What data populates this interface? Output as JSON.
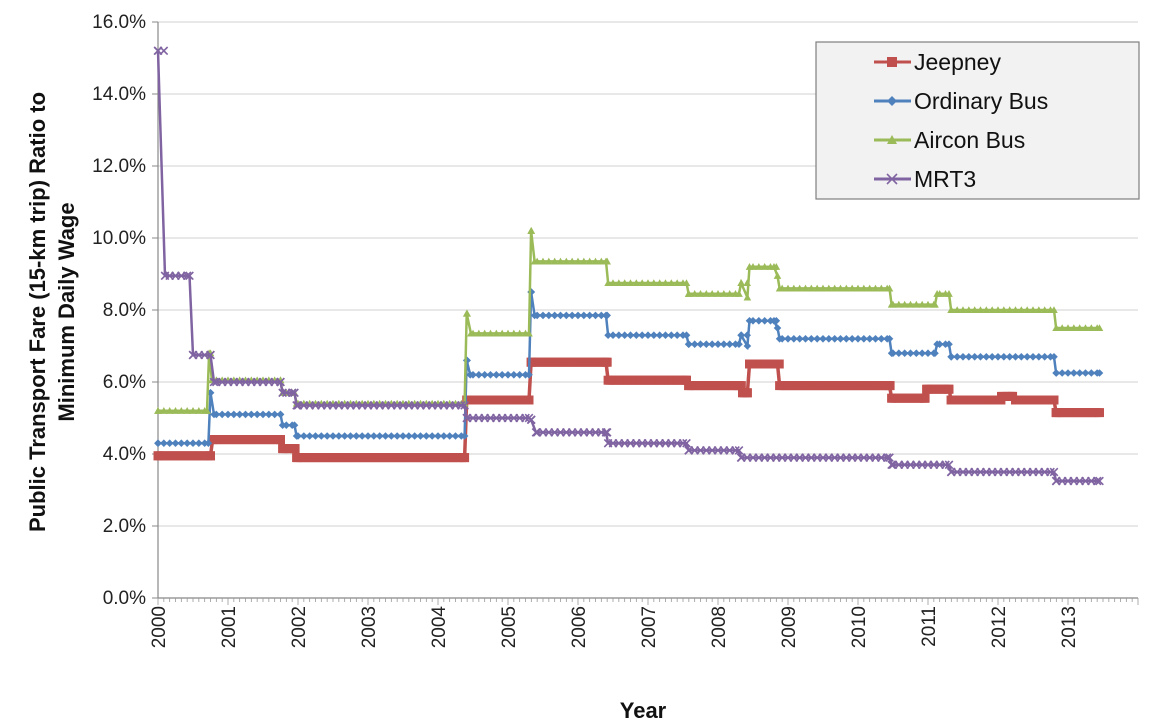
{
  "chart_data": {
    "type": "line",
    "title": "",
    "xlabel": "Year",
    "ylabel": "Public Transport Fare (15-km trip) Ratio to Minimum Daily Wage",
    "ylabel_lines": [
      "Public Transport Fare (15-km trip) Ratio to",
      "Minimum Daily Wage"
    ],
    "x_ticks": [
      "2000",
      "2001",
      "2002",
      "2003",
      "2004",
      "2005",
      "2006",
      "2007",
      "2008",
      "2009",
      "2010",
      "2011",
      "2012",
      "2013"
    ],
    "y_ticks": [
      "0.0%",
      "2.0%",
      "4.0%",
      "6.0%",
      "8.0%",
      "10.0%",
      "12.0%",
      "14.0%",
      "16.0%"
    ],
    "xlim": [
      2000,
      2014
    ],
    "ylim": [
      0,
      16
    ],
    "grid": "horizontal",
    "legend_position": "top-right",
    "series": [
      {
        "name": "Jeepney",
        "color": "#c0504d",
        "marker": "square",
        "points": [
          [
            2000.0,
            3.95
          ],
          [
            2000.75,
            3.95
          ],
          [
            2000.78,
            4.4
          ],
          [
            2001.75,
            4.4
          ],
          [
            2001.78,
            4.15
          ],
          [
            2001.95,
            4.15
          ],
          [
            2001.98,
            3.9
          ],
          [
            2004.38,
            3.9
          ],
          [
            2004.41,
            5.5
          ],
          [
            2005.3,
            5.5
          ],
          [
            2005.33,
            6.55
          ],
          [
            2006.4,
            6.55
          ],
          [
            2006.43,
            6.05
          ],
          [
            2007.55,
            6.05
          ],
          [
            2007.58,
            5.9
          ],
          [
            2008.3,
            5.9
          ],
          [
            2008.35,
            5.7
          ],
          [
            2008.42,
            5.7
          ],
          [
            2008.45,
            6.5
          ],
          [
            2008.85,
            6.5
          ],
          [
            2008.88,
            5.9
          ],
          [
            2010.45,
            5.9
          ],
          [
            2010.48,
            5.55
          ],
          [
            2010.95,
            5.55
          ],
          [
            2010.98,
            5.8
          ],
          [
            2011.3,
            5.8
          ],
          [
            2011.33,
            5.5
          ],
          [
            2012.0,
            5.5
          ],
          [
            2012.05,
            5.6
          ],
          [
            2012.2,
            5.6
          ],
          [
            2012.25,
            5.5
          ],
          [
            2012.8,
            5.5
          ],
          [
            2012.83,
            5.15
          ],
          [
            2013.45,
            5.15
          ]
        ]
      },
      {
        "name": "Ordinary Bus",
        "color": "#4f81bd",
        "marker": "diamond",
        "points": [
          [
            2000.0,
            4.3
          ],
          [
            2000.72,
            4.3
          ],
          [
            2000.75,
            5.7
          ],
          [
            2000.8,
            5.1
          ],
          [
            2001.75,
            5.1
          ],
          [
            2001.78,
            4.8
          ],
          [
            2001.95,
            4.8
          ],
          [
            2001.98,
            4.5
          ],
          [
            2004.38,
            4.5
          ],
          [
            2004.41,
            6.6
          ],
          [
            2004.46,
            6.2
          ],
          [
            2005.3,
            6.2
          ],
          [
            2005.33,
            8.5
          ],
          [
            2005.38,
            7.85
          ],
          [
            2006.4,
            7.85
          ],
          [
            2006.43,
            7.3
          ],
          [
            2007.55,
            7.3
          ],
          [
            2007.58,
            7.05
          ],
          [
            2008.3,
            7.05
          ],
          [
            2008.33,
            7.3
          ],
          [
            2008.42,
            7.0
          ],
          [
            2008.45,
            7.7
          ],
          [
            2008.8,
            7.7
          ],
          [
            2008.85,
            7.5
          ],
          [
            2008.88,
            7.2
          ],
          [
            2010.45,
            7.2
          ],
          [
            2010.48,
            6.8
          ],
          [
            2011.1,
            6.8
          ],
          [
            2011.13,
            7.05
          ],
          [
            2011.3,
            7.05
          ],
          [
            2011.33,
            6.7
          ],
          [
            2012.8,
            6.7
          ],
          [
            2012.83,
            6.25
          ],
          [
            2013.45,
            6.25
          ]
        ]
      },
      {
        "name": "Aircon Bus",
        "color": "#9bbb59",
        "marker": "triangle",
        "points": [
          [
            2000.0,
            5.2
          ],
          [
            2000.7,
            5.2
          ],
          [
            2000.73,
            6.8
          ],
          [
            2000.77,
            6.05
          ],
          [
            2001.75,
            6.05
          ],
          [
            2001.78,
            5.7
          ],
          [
            2001.95,
            5.7
          ],
          [
            2001.98,
            5.4
          ],
          [
            2004.38,
            5.4
          ],
          [
            2004.41,
            7.9
          ],
          [
            2004.47,
            7.35
          ],
          [
            2005.3,
            7.35
          ],
          [
            2005.33,
            10.2
          ],
          [
            2005.38,
            9.35
          ],
          [
            2006.4,
            9.35
          ],
          [
            2006.43,
            8.75
          ],
          [
            2007.55,
            8.75
          ],
          [
            2007.58,
            8.45
          ],
          [
            2008.3,
            8.45
          ],
          [
            2008.33,
            8.75
          ],
          [
            2008.42,
            8.35
          ],
          [
            2008.45,
            9.2
          ],
          [
            2008.8,
            9.2
          ],
          [
            2008.85,
            8.95
          ],
          [
            2008.88,
            8.6
          ],
          [
            2010.45,
            8.6
          ],
          [
            2010.48,
            8.15
          ],
          [
            2011.1,
            8.15
          ],
          [
            2011.13,
            8.45
          ],
          [
            2011.3,
            8.45
          ],
          [
            2011.33,
            8.0
          ],
          [
            2012.8,
            8.0
          ],
          [
            2012.83,
            7.5
          ],
          [
            2013.45,
            7.5
          ]
        ]
      },
      {
        "name": "MRT3",
        "color": "#8064a2",
        "marker": "x",
        "points": [
          [
            2000.0,
            15.2
          ],
          [
            2000.1,
            8.95
          ],
          [
            2000.45,
            8.95
          ],
          [
            2000.5,
            6.75
          ],
          [
            2000.75,
            6.75
          ],
          [
            2000.8,
            6.0
          ],
          [
            2001.75,
            6.0
          ],
          [
            2001.78,
            5.7
          ],
          [
            2001.95,
            5.7
          ],
          [
            2001.98,
            5.35
          ],
          [
            2004.38,
            5.35
          ],
          [
            2004.41,
            5.0
          ],
          [
            2005.3,
            5.0
          ],
          [
            2005.33,
            4.95
          ],
          [
            2005.4,
            4.6
          ],
          [
            2006.4,
            4.6
          ],
          [
            2006.43,
            4.3
          ],
          [
            2007.55,
            4.3
          ],
          [
            2007.58,
            4.1
          ],
          [
            2008.3,
            4.1
          ],
          [
            2008.33,
            3.9
          ],
          [
            2010.45,
            3.9
          ],
          [
            2010.48,
            3.7
          ],
          [
            2011.3,
            3.7
          ],
          [
            2011.33,
            3.5
          ],
          [
            2012.8,
            3.5
          ],
          [
            2012.83,
            3.25
          ],
          [
            2013.45,
            3.25
          ]
        ]
      }
    ]
  }
}
